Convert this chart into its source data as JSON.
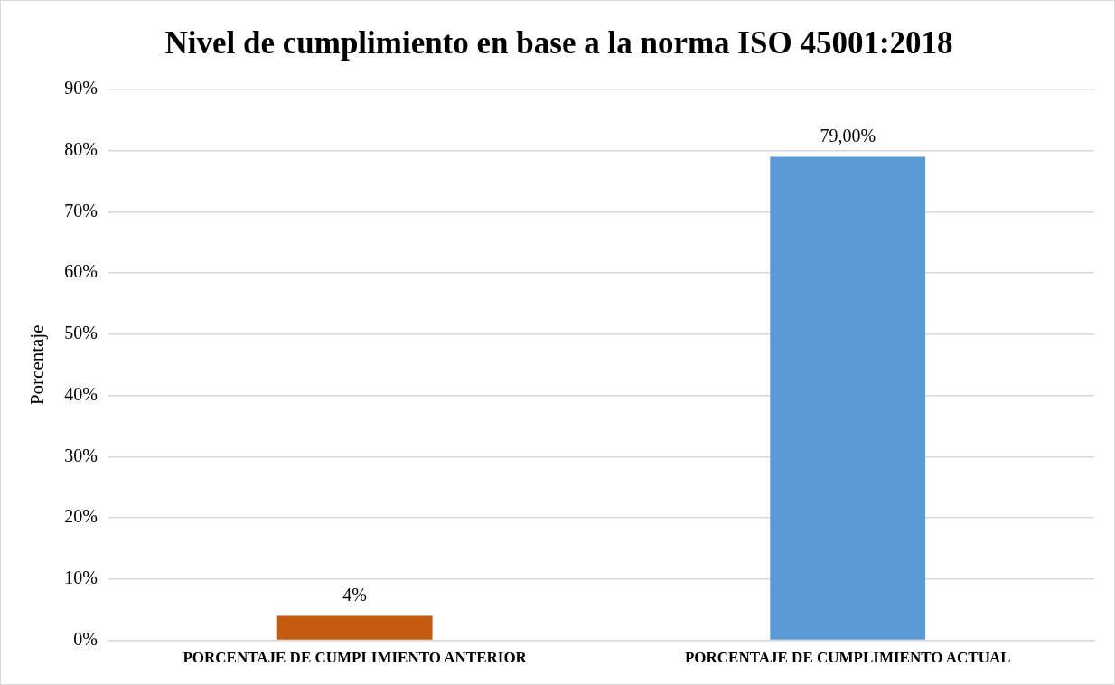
{
  "chart_data": {
    "type": "bar",
    "title": "Nivel de cumplimiento en base a la norma ISO 45001:2018",
    "ylabel": "Porcentaje",
    "categories": [
      "PORCENTAJE DE CUMPLIMIENTO ANTERIOR",
      "PORCENTAJE DE CUMPLIMIENTO ACTUAL"
    ],
    "values": [
      4,
      79
    ],
    "colors": [
      "#c55a11",
      "#5b9bd5"
    ],
    "value_labels": [
      "4%",
      "79,00%"
    ],
    "ylim": [
      0,
      90
    ],
    "yticks": [
      {
        "value": 0,
        "label": "0%"
      },
      {
        "value": 10,
        "label": "10%"
      },
      {
        "value": 20,
        "label": "20%"
      },
      {
        "value": 30,
        "label": "30%"
      },
      {
        "value": 40,
        "label": "40%"
      },
      {
        "value": 50,
        "label": "50%"
      },
      {
        "value": 60,
        "label": "60%"
      },
      {
        "value": 70,
        "label": "70%"
      },
      {
        "value": 80,
        "label": "80%"
      },
      {
        "value": 90,
        "label": "90%"
      }
    ],
    "grid": "y"
  }
}
